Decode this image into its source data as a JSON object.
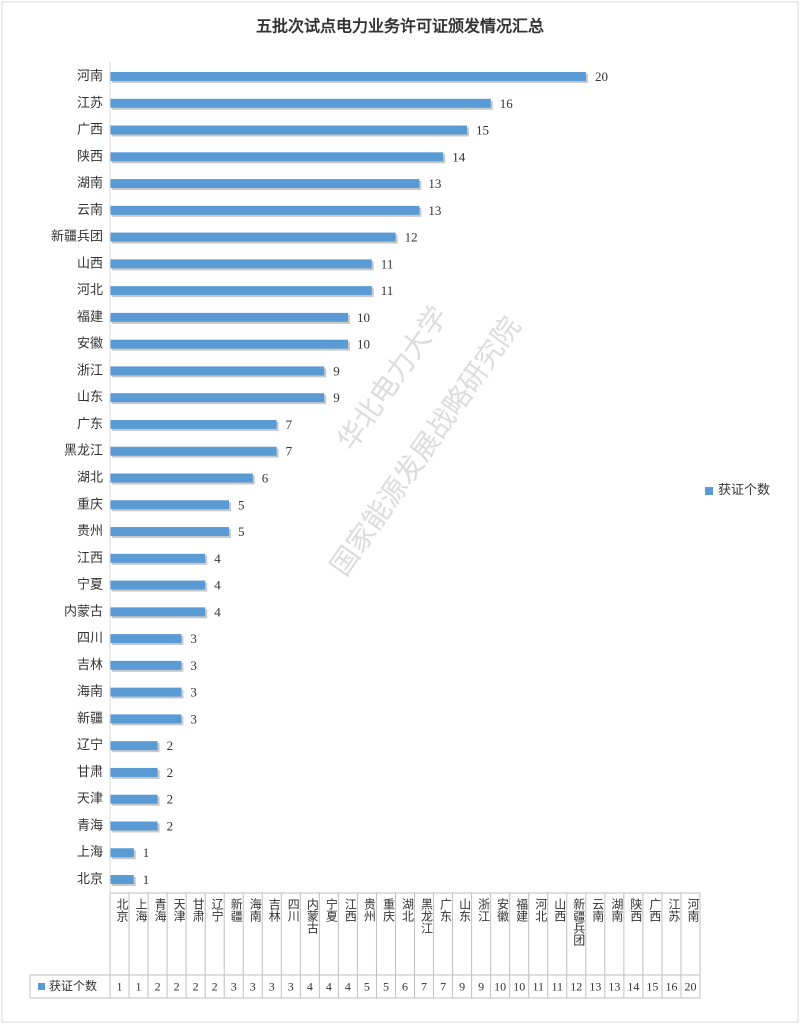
{
  "chart_data": {
    "type": "barh",
    "title": "五批次试点电力业务许可证颁发情况汇总",
    "categories": [
      "北京",
      "上海",
      "青海",
      "天津",
      "甘肃",
      "辽宁",
      "新疆",
      "海南",
      "吉林",
      "四川",
      "内蒙古",
      "宁夏",
      "江西",
      "贵州",
      "重庆",
      "湖北",
      "黑龙江",
      "广东",
      "山东",
      "浙江",
      "安徽",
      "福建",
      "河北",
      "山西",
      "新疆兵团",
      "云南",
      "湖南",
      "陕西",
      "广西",
      "江苏",
      "河南"
    ],
    "series": [
      {
        "name": "获证个数",
        "color": "#5b9bd5",
        "values": [
          1,
          1,
          2,
          2,
          2,
          2,
          3,
          3,
          3,
          3,
          4,
          4,
          4,
          5,
          5,
          6,
          7,
          7,
          9,
          9,
          10,
          10,
          11,
          11,
          12,
          13,
          13,
          14,
          15,
          16,
          20
        ]
      }
    ],
    "legend": "right",
    "data_table": true,
    "watermark": [
      "华北电力大学",
      "国家能源发展战略研究院"
    ]
  }
}
